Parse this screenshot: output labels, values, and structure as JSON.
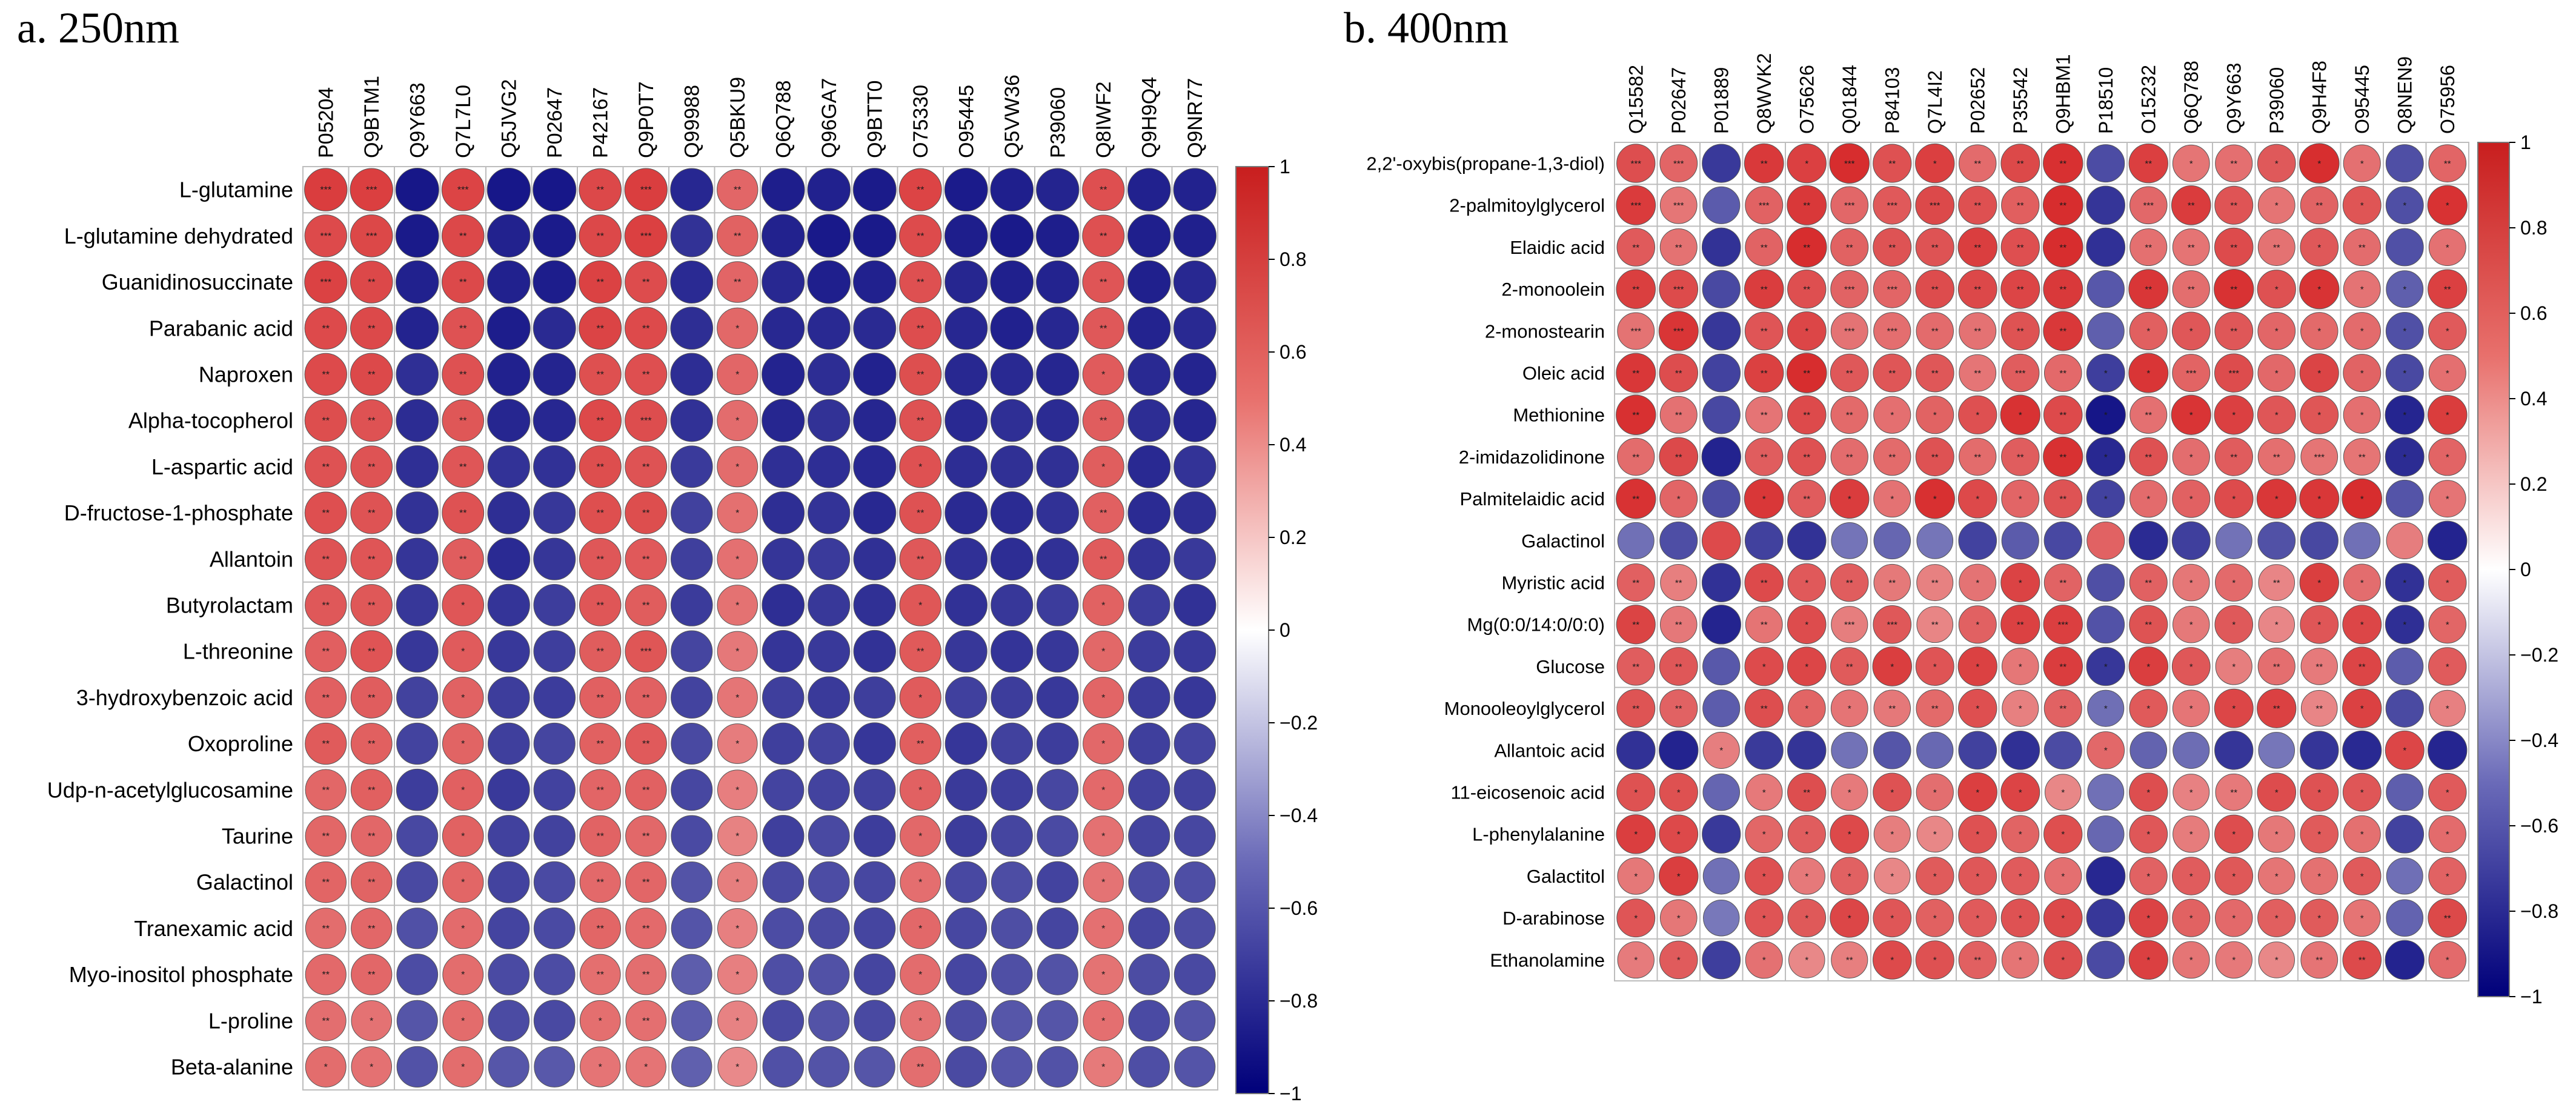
{
  "chart_data": [
    {
      "type": "heatmap",
      "title": "a. 250nm",
      "columns": [
        "P05204",
        "Q9BTM1",
        "Q9Y663",
        "Q7L7L0",
        "Q5JVG2",
        "P02647",
        "P42167",
        "Q9P0T7",
        "Q99988",
        "Q5BKU9",
        "Q6Q788",
        "Q96GA7",
        "Q9BTT0",
        "O75330",
        "O95445",
        "Q5VW36",
        "P39060",
        "Q8IWF2",
        "Q9H9Q4",
        "Q9NR77"
      ],
      "rows": [
        "L-glutamine",
        "L-glutamine dehydrated",
        "Guanidinosuccinate",
        "Parabanic acid",
        "Naproxen",
        "Alpha-tocopherol",
        "L-aspartic acid",
        "D-fructose-1-phosphate",
        "Allantoin",
        "Butyrolactam",
        "L-threonine",
        "3-hydroxybenzoic acid",
        "Oxoproline",
        "Udp-n-acetylglucosamine",
        "Taurine",
        "Galactinol",
        "Tranexamic acid",
        "Myo-inositol phosphate",
        "L-proline",
        "Beta-alanine"
      ],
      "column_values": [
        0.9,
        0.9,
        -0.95,
        0.88,
        -0.96,
        -0.95,
        0.9,
        0.9,
        -0.9,
        0.75,
        -0.96,
        -0.95,
        -0.96,
        0.88,
        -0.96,
        -0.95,
        -0.95,
        0.85,
        -0.95,
        -0.95
      ],
      "significance": [
        [
          "***",
          "***",
          "",
          "***",
          "",
          "",
          "**",
          "***",
          "",
          "**",
          "",
          "",
          "",
          "**",
          "",
          "",
          "",
          "**",
          "",
          ""
        ],
        [
          "***",
          "***",
          "",
          "**",
          "",
          "",
          "**",
          "***",
          "",
          "**",
          "",
          "",
          "",
          "**",
          "",
          "",
          "",
          "**",
          "",
          ""
        ],
        [
          "***",
          "**",
          "",
          "**",
          "",
          "",
          "**",
          "**",
          "",
          "**",
          "",
          "",
          "",
          "**",
          "",
          "",
          "",
          "**",
          "",
          ""
        ],
        [
          "**",
          "**",
          "",
          "**",
          "",
          "",
          "**",
          "**",
          "",
          "*",
          "",
          "",
          "",
          "**",
          "",
          "",
          "",
          "**",
          "",
          ""
        ],
        [
          "**",
          "**",
          "",
          "**",
          "",
          "",
          "**",
          "**",
          "",
          "*",
          "",
          "",
          "",
          "**",
          "",
          "",
          "",
          "*",
          "",
          ""
        ],
        [
          "**",
          "**",
          "",
          "**",
          "",
          "",
          "**",
          "***",
          "",
          "*",
          "",
          "",
          "",
          "**",
          "",
          "",
          "",
          "**",
          "",
          ""
        ],
        [
          "**",
          "**",
          "",
          "**",
          "",
          "",
          "**",
          "**",
          "",
          "*",
          "",
          "",
          "",
          "*",
          "",
          "",
          "",
          "*",
          "",
          ""
        ],
        [
          "**",
          "**",
          "",
          "**",
          "",
          "",
          "**",
          "**",
          "",
          "*",
          "",
          "",
          "",
          "**",
          "",
          "",
          "",
          "**",
          "",
          ""
        ],
        [
          "**",
          "**",
          "",
          "**",
          "",
          "",
          "**",
          "**",
          "",
          "*",
          "",
          "",
          "",
          "**",
          "",
          "",
          "",
          "**",
          "",
          ""
        ],
        [
          "**",
          "**",
          "",
          "*",
          "",
          "",
          "**",
          "**",
          "",
          "*",
          "",
          "",
          "",
          "*",
          "",
          "",
          "",
          "*",
          "",
          ""
        ],
        [
          "**",
          "**",
          "",
          "*",
          "",
          "",
          "**",
          "***",
          "",
          "*",
          "",
          "",
          "",
          "**",
          "",
          "",
          "",
          "*",
          "",
          ""
        ],
        [
          "**",
          "**",
          "",
          "*",
          "",
          "",
          "**",
          "**",
          "",
          "*",
          "",
          "",
          "",
          "*",
          "",
          "",
          "",
          "*",
          "",
          ""
        ],
        [
          "**",
          "**",
          "",
          "*",
          "",
          "",
          "**",
          "**",
          "",
          "*",
          "",
          "",
          "",
          "**",
          "",
          "",
          "",
          "*",
          "",
          ""
        ],
        [
          "**",
          "**",
          "",
          "*",
          "",
          "",
          "**",
          "**",
          "",
          "*",
          "",
          "",
          "",
          "*",
          "",
          "",
          "",
          "*",
          "",
          ""
        ],
        [
          "**",
          "**",
          "",
          "*",
          "",
          "",
          "**",
          "**",
          "",
          "*",
          "",
          "",
          "",
          "*",
          "",
          "",
          "",
          "*",
          "",
          ""
        ],
        [
          "**",
          "**",
          "",
          "*",
          "",
          "",
          "**",
          "**",
          "",
          "*",
          "",
          "",
          "",
          "*",
          "",
          "",
          "",
          "*",
          "",
          ""
        ],
        [
          "**",
          "**",
          "",
          "*",
          "",
          "",
          "**",
          "**",
          "",
          "*",
          "",
          "",
          "",
          "*",
          "",
          "",
          "",
          "*",
          "",
          ""
        ],
        [
          "**",
          "**",
          "",
          "*",
          "",
          "",
          "**",
          "**",
          "",
          "*",
          "",
          "",
          "",
          "*",
          "",
          "",
          "",
          "*",
          "",
          ""
        ],
        [
          "**",
          "*",
          "",
          "*",
          "",
          "",
          "*",
          "**",
          "",
          "*",
          "",
          "",
          "",
          "*",
          "",
          "",
          "",
          "*",
          "",
          ""
        ],
        [
          "*",
          "*",
          "",
          "*",
          "",
          "",
          "*",
          "*",
          "",
          "*",
          "",
          "",
          "",
          "**",
          "",
          "",
          "",
          "*",
          "",
          ""
        ]
      ],
      "colorbar": {
        "range": [
          -1,
          1
        ],
        "ticks": [
          "1",
          "0.8",
          "0.6",
          "0.4",
          "0.2",
          "0",
          "−0.2",
          "−0.4",
          "−0.6",
          "−0.8",
          "−1"
        ]
      }
    },
    {
      "type": "heatmap",
      "title": "b. 400nm",
      "columns": [
        "Q15582",
        "P02647",
        "P01889",
        "Q8WVK2",
        "O75626",
        "Q01844",
        "P84103",
        "Q7L4I2",
        "P02652",
        "P35542",
        "Q9HBM1",
        "P18510",
        "O15232",
        "Q6Q788",
        "Q9Y663",
        "P39060",
        "Q9H4F8",
        "O95445",
        "Q8NEN9",
        "O75956"
      ],
      "rows": [
        "2,2'-oxybis(propane-1,3-diol)",
        "2-palmitoylglycerol",
        "Elaidic acid",
        "2-monoolein",
        "2-monostearin",
        "Oleic acid",
        "Methionine",
        "2-imidazolidinone",
        "Palmitelaidic acid",
        "Galactinol",
        "Myristic acid",
        "Mg(0:0/14:0/0:0)",
        "Glucose",
        "Monooleoylglycerol",
        "Allantoic acid",
        "11-eicosenoic acid",
        "L-phenylalanine",
        "Galactitol",
        "D-arabinose",
        "Ethanolamine"
      ],
      "row_sign": [
        1,
        1,
        1,
        1,
        1,
        1,
        1,
        1,
        1,
        -1,
        1,
        1,
        1,
        1,
        -1,
        1,
        1,
        1,
        1,
        1
      ],
      "column_sign": [
        1,
        1,
        -1,
        1,
        1,
        1,
        1,
        1,
        1,
        1,
        1,
        -1,
        1,
        1,
        1,
        1,
        1,
        1,
        -1,
        1
      ],
      "significance": [
        [
          "***",
          "***",
          "",
          "**",
          "*",
          "***",
          "**",
          "*",
          "**",
          "**",
          "**",
          "",
          "**",
          "*",
          "**",
          "*",
          "*",
          "*",
          "",
          "**"
        ],
        [
          "***",
          "***",
          "",
          "***",
          "**",
          "***",
          "***",
          "***",
          "**",
          "**",
          "**",
          "",
          "***",
          "**",
          "**",
          "*",
          "**",
          "*",
          "*",
          "*"
        ],
        [
          "**",
          "**",
          "",
          "**",
          "**",
          "**",
          "**",
          "**",
          "**",
          "**",
          "**",
          "",
          "**",
          "**",
          "**",
          "**",
          "*",
          "**",
          "",
          "*"
        ],
        [
          "**",
          "***",
          "",
          "**",
          "**",
          "***",
          "***",
          "**",
          "**",
          "**",
          "**",
          "",
          "**",
          "**",
          "**",
          "*",
          "*",
          "*",
          "*",
          "**"
        ],
        [
          "***",
          "***",
          "",
          "**",
          "*",
          "***",
          "***",
          "**",
          "**",
          "**",
          "**",
          "",
          "*",
          "*",
          "**",
          "*",
          "*",
          "*",
          "*",
          "*"
        ],
        [
          "**",
          "**",
          "",
          "**",
          "**",
          "**",
          "**",
          "**",
          "**",
          "***",
          "**",
          "*",
          "*",
          "***",
          "***",
          "*",
          "*",
          "*",
          "*",
          "*"
        ],
        [
          "**",
          "**",
          "",
          "**",
          "**",
          "**",
          "*",
          "*",
          "*",
          "*",
          "**",
          "*",
          "**",
          "*",
          "*",
          "*",
          "*",
          "*",
          "*",
          "*"
        ],
        [
          "**",
          "**",
          "",
          "**",
          "**",
          "**",
          "**",
          "**",
          "**",
          "**",
          "**",
          "*",
          "**",
          "*",
          "**",
          "**",
          "***",
          "**",
          "*",
          "*"
        ],
        [
          "**",
          "*",
          "",
          "*",
          "**",
          "*",
          "*",
          "*",
          "*",
          "*",
          "**",
          "*",
          "*",
          "*",
          "*",
          "*",
          "*",
          "*",
          "",
          "*"
        ],
        [
          "",
          "",
          "",
          "",
          "",
          "",
          "",
          "",
          "",
          "",
          "",
          "",
          "",
          "",
          "",
          "",
          "",
          "",
          "",
          ""
        ],
        [
          "**",
          "**",
          "",
          "**",
          "*",
          "**",
          "**",
          "**",
          "*",
          "*",
          "**",
          "",
          "**",
          "*",
          "*",
          "**",
          "*",
          "*",
          "*",
          "*"
        ],
        [
          "**",
          "**",
          "",
          "**",
          "*",
          "***",
          "***",
          "**",
          "*",
          "**",
          "***",
          "",
          "**",
          "*",
          "*",
          "*",
          "*",
          "*",
          "*",
          "*"
        ],
        [
          "**",
          "**",
          "",
          "*",
          "*",
          "**",
          "*",
          "*",
          "*",
          "*",
          "**",
          "*",
          "*",
          "*",
          "*",
          "**",
          "**",
          "**",
          "",
          "*"
        ],
        [
          "**",
          "**",
          "",
          "**",
          "*",
          "*",
          "**",
          "**",
          "*",
          "*",
          "**",
          "*",
          "*",
          "*",
          "*",
          "**",
          "**",
          "*",
          "",
          "*"
        ],
        [
          "",
          "",
          "*",
          "",
          "",
          "",
          "",
          "",
          "",
          "",
          "",
          "*",
          "",
          "",
          "",
          "",
          "",
          "",
          "*",
          ""
        ],
        [
          "*",
          "*",
          "",
          "*",
          "**",
          "*",
          "*",
          "*",
          "*",
          "*",
          "*",
          "",
          "*",
          "*",
          "**",
          "*",
          "*",
          "*",
          "",
          "*"
        ],
        [
          "*",
          "*",
          "",
          "*",
          "*",
          "*",
          "*",
          "*",
          "*",
          "*",
          "*",
          "",
          "*",
          "*",
          "*",
          "*",
          "*",
          "*",
          "",
          "*"
        ],
        [
          "*",
          "*",
          "",
          "*",
          "*",
          "*",
          "*",
          "*",
          "*",
          "*",
          "*",
          "",
          "*",
          "*",
          "*",
          "*",
          "*",
          "*",
          "",
          "*"
        ],
        [
          "*",
          "*",
          "",
          "*",
          "*",
          "*",
          "*",
          "*",
          "*",
          "*",
          "*",
          "",
          "*",
          "*",
          "*",
          "*",
          "*",
          "*",
          "",
          "**"
        ],
        [
          "*",
          "*",
          "",
          "*",
          "*",
          "**",
          "*",
          "*",
          "**",
          "*",
          "*",
          "",
          "*",
          "*",
          "*",
          "*",
          "**",
          "**",
          "",
          "*"
        ]
      ],
      "colorbar": {
        "range": [
          -1,
          1
        ],
        "ticks": [
          "1",
          "0.8",
          "0.6",
          "0.4",
          "0.2",
          "0",
          "−0.2",
          "−0.4",
          "−0.6",
          "−0.8",
          "−1"
        ]
      }
    }
  ],
  "colors": {
    "positive": "#d62728",
    "negative": "#0a0a82",
    "mid": "#ffffff",
    "grid": "#bdbdbd",
    "text": "#000000"
  }
}
